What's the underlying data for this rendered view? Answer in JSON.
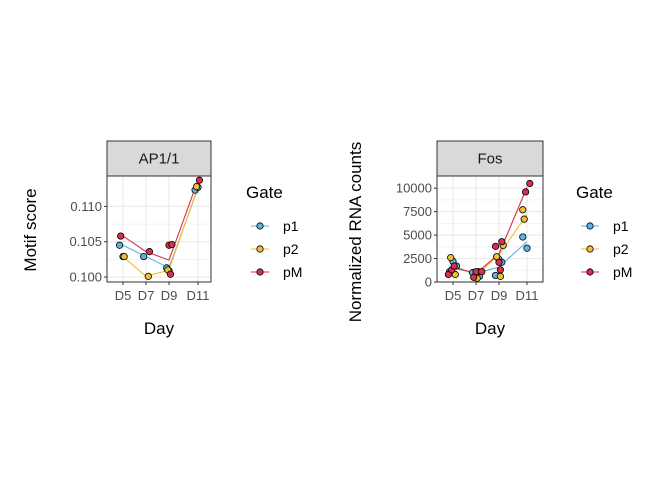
{
  "colors": {
    "p1": "#5ab4e0",
    "p2": "#f0be32",
    "pM": "#dc2d50"
  },
  "legend": {
    "title": "Gate",
    "items": [
      "p1",
      "p2",
      "pM"
    ]
  },
  "chart_data": [
    {
      "type": "line",
      "panel": "AP1/1",
      "xlabel": "Day",
      "ylabel": "Motif score",
      "categories": [
        "D5",
        "D7",
        "D9",
        "D11"
      ],
      "ylim": [
        0.0993,
        0.1143
      ],
      "yticks": [
        0.1,
        0.105,
        0.11
      ],
      "ytick_labels": [
        "0.100",
        "0.105",
        "0.110"
      ],
      "series": [
        {
          "name": "p1",
          "line": [
            0.1045,
            0.1029,
            0.1013,
            0.1126
          ],
          "points": [
            [
              0.85,
              0.1045
            ],
            [
              1.0,
              0.1029
            ],
            [
              1.9,
              0.1029
            ],
            [
              2.9,
              0.1013
            ],
            [
              3.0,
              0.1009
            ],
            [
              3.9,
              0.1123
            ],
            [
              4.0,
              0.1127
            ]
          ]
        },
        {
          "name": "p2",
          "line": [
            0.1029,
            0.1001,
            0.101,
            0.1128
          ],
          "points": [
            [
              1.05,
              0.1029
            ],
            [
              2.1,
              0.1001
            ],
            [
              2.95,
              0.101
            ],
            [
              3.95,
              0.1128
            ]
          ]
        },
        {
          "name": "pM",
          "line": [
            0.1058,
            0.1036,
            0.1024,
            0.1137
          ],
          "points": [
            [
              0.9,
              0.1058
            ],
            [
              2.15,
              0.1036
            ],
            [
              3.0,
              0.1045
            ],
            [
              3.1,
              0.1046
            ],
            [
              3.05,
              0.1004
            ],
            [
              4.05,
              0.1137
            ]
          ]
        }
      ]
    },
    {
      "type": "line",
      "panel": "Fos",
      "xlabel": "Day",
      "ylabel": "Normalized RNA counts",
      "categories": [
        "D5",
        "D7",
        "D9",
        "D11"
      ],
      "ylim": [
        0,
        11300
      ],
      "yticks": [
        0,
        2500,
        5000,
        7500,
        10000
      ],
      "ytick_labels": [
        "0",
        "2500",
        "5000",
        "7500",
        "10000"
      ],
      "series": [
        {
          "name": "p1",
          "line": [
            1500,
            900,
            1600,
            4300
          ],
          "points": [
            [
              0.85,
              1100
            ],
            [
              1.0,
              2200
            ],
            [
              1.15,
              1700
            ],
            [
              1.85,
              1000
            ],
            [
              2.0,
              800
            ],
            [
              2.15,
              600
            ],
            [
              2.85,
              700
            ],
            [
              3.0,
              2400
            ],
            [
              3.1,
              2100
            ],
            [
              3.85,
              4800
            ],
            [
              4.0,
              3600
            ]
          ]
        },
        {
          "name": "p2",
          "line": [
            1800,
            700,
            2900,
            7200
          ],
          "points": [
            [
              0.9,
              2600
            ],
            [
              1.1,
              800
            ],
            [
              2.05,
              400
            ],
            [
              2.1,
              1100
            ],
            [
              2.9,
              2700
            ],
            [
              3.05,
              600
            ],
            [
              3.15,
              3900
            ],
            [
              3.85,
              7700
            ],
            [
              3.9,
              6700
            ]
          ]
        },
        {
          "name": "pM",
          "line": [
            1600,
            900,
            3000,
            10100
          ],
          "points": [
            [
              0.8,
              800
            ],
            [
              0.95,
              1300
            ],
            [
              1.05,
              1700
            ],
            [
              1.9,
              500
            ],
            [
              2.0,
              1100
            ],
            [
              2.25,
              1100
            ],
            [
              2.85,
              3800
            ],
            [
              3.0,
              2100
            ],
            [
              3.05,
              1300
            ],
            [
              3.1,
              4300
            ],
            [
              3.95,
              9600
            ],
            [
              4.1,
              10500
            ]
          ]
        }
      ]
    }
  ]
}
